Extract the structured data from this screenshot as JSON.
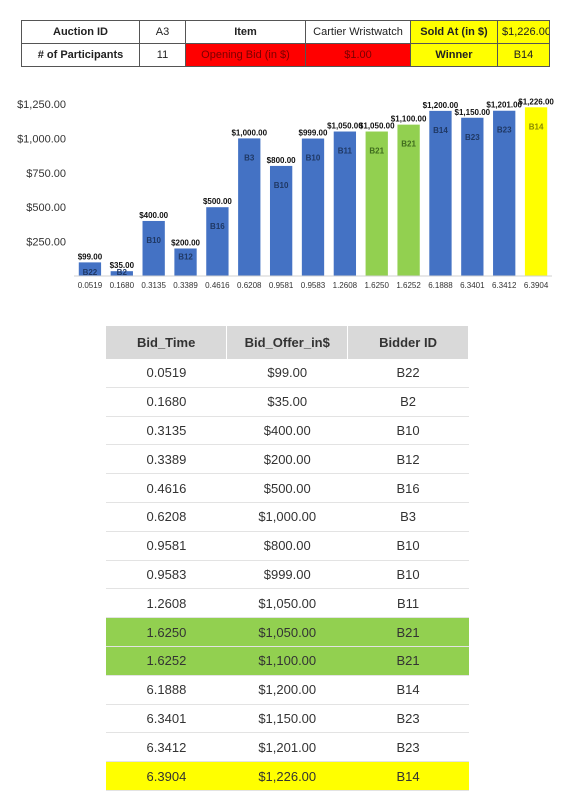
{
  "summary": {
    "auction_id_label": "Auction ID",
    "auction_id": "A3",
    "item_label": "Item",
    "item": "Cartier Wristwatch",
    "sold_at_label": "Sold At (in $)",
    "sold_at": "$1,226.00",
    "participants_label": "# of Participants",
    "participants": "11",
    "opening_bid_label": "Opening Bid (in $)",
    "opening_bid": "$1.00",
    "winner_label": "Winner",
    "winner": "B14"
  },
  "colors": {
    "bar_default": "#4472c4",
    "bar_highlight_green": "#92d050",
    "bar_winner_yellow": "#ffff00",
    "opening_bid_red": "#ff0000",
    "header_grey": "#d9d9d9"
  },
  "chart_data": {
    "type": "bar",
    "categories": [
      "0.0519",
      "0.1680",
      "0.3135",
      "0.3389",
      "0.4616",
      "0.6208",
      "0.9581",
      "0.9583",
      "1.2608",
      "1.6250",
      "1.6252",
      "6.1888",
      "6.3401",
      "6.3412",
      "6.3904"
    ],
    "values": [
      99,
      35,
      400,
      200,
      500,
      1000,
      800,
      999,
      1050,
      1050,
      1100,
      1200,
      1150,
      1201,
      1226
    ],
    "data_labels": [
      "$99.00",
      "$35.00",
      "$400.00",
      "$200.00",
      "$500.00",
      "$1,000.00",
      "$800.00",
      "$999.00",
      "$1,050.00",
      "$1,050.00",
      "$1,100.00",
      "$1,200.00",
      "$1,150.00",
      "$1,201.00",
      "$1,226.00"
    ],
    "bar_labels": [
      "B22",
      "B2",
      "B10",
      "B12",
      "B16",
      "B3",
      "B10",
      "B10",
      "B11",
      "B21",
      "B21",
      "B14",
      "B23",
      "B23",
      "B14"
    ],
    "bar_colors": [
      "#4472c4",
      "#4472c4",
      "#4472c4",
      "#4472c4",
      "#4472c4",
      "#4472c4",
      "#4472c4",
      "#4472c4",
      "#4472c4",
      "#92d050",
      "#92d050",
      "#4472c4",
      "#4472c4",
      "#4472c4",
      "#ffff00"
    ],
    "y_ticks": [
      250,
      500,
      750,
      1000,
      1250
    ],
    "y_tick_labels": [
      "$250.00",
      "$500.00",
      "$750.00",
      "$1,000.00",
      "$1,250.00"
    ],
    "ylim": [
      0,
      1250
    ],
    "grid": false,
    "legend": "none"
  },
  "bids_table": {
    "headers": [
      "Bid_Time",
      "Bid_Offer_in$",
      "Bidder ID"
    ],
    "rows": [
      {
        "time": "0.0519",
        "offer": "$99.00",
        "bidder": "B22",
        "hl": ""
      },
      {
        "time": "0.1680",
        "offer": "$35.00",
        "bidder": "B2",
        "hl": ""
      },
      {
        "time": "0.3135",
        "offer": "$400.00",
        "bidder": "B10",
        "hl": ""
      },
      {
        "time": "0.3389",
        "offer": "$200.00",
        "bidder": "B12",
        "hl": ""
      },
      {
        "time": "0.4616",
        "offer": "$500.00",
        "bidder": "B16",
        "hl": ""
      },
      {
        "time": "0.6208",
        "offer": "$1,000.00",
        "bidder": "B3",
        "hl": ""
      },
      {
        "time": "0.9581",
        "offer": "$800.00",
        "bidder": "B10",
        "hl": ""
      },
      {
        "time": "0.9583",
        "offer": "$999.00",
        "bidder": "B10",
        "hl": ""
      },
      {
        "time": "1.2608",
        "offer": "$1,050.00",
        "bidder": "B11",
        "hl": ""
      },
      {
        "time": "1.6250",
        "offer": "$1,050.00",
        "bidder": "B21",
        "hl": "green"
      },
      {
        "time": "1.6252",
        "offer": "$1,100.00",
        "bidder": "B21",
        "hl": "green"
      },
      {
        "time": "6.1888",
        "offer": "$1,200.00",
        "bidder": "B14",
        "hl": ""
      },
      {
        "time": "6.3401",
        "offer": "$1,150.00",
        "bidder": "B23",
        "hl": ""
      },
      {
        "time": "6.3412",
        "offer": "$1,201.00",
        "bidder": "B23",
        "hl": ""
      },
      {
        "time": "6.3904",
        "offer": "$1,226.00",
        "bidder": "B14",
        "hl": "yellow"
      }
    ]
  }
}
